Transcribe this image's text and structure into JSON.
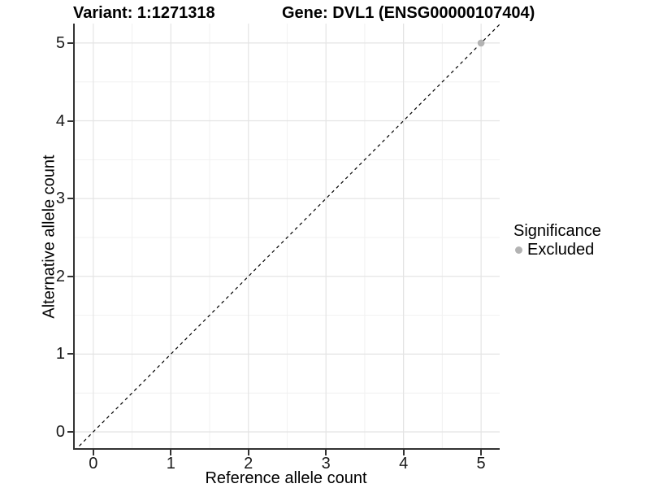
{
  "header": {
    "title_left": "Variant: 1:1271318",
    "title_right": "Gene: DVL1 (ENSG00000107404)"
  },
  "chart_data": {
    "type": "scatter",
    "title_left": "Variant: 1:1271318",
    "title_right": "Gene: DVL1 (ENSG00000107404)",
    "xlabel": "Reference allele count",
    "ylabel": "Alternative allele count",
    "xlim": [
      -0.26,
      5.24
    ],
    "ylim": [
      -0.23,
      5.25
    ],
    "x_ticks": [
      0,
      1,
      2,
      3,
      4,
      5
    ],
    "y_ticks": [
      0,
      1,
      2,
      3,
      4,
      5
    ],
    "grid": {
      "major": true,
      "minor": true,
      "major_color": "#e4e4e4",
      "minor_color": "#f1f1f1",
      "background": "#ffffff"
    },
    "axis_line_color": "#333333",
    "identity_line": {
      "meaning": "y = x reference line",
      "style": "dashed",
      "color": "#000000",
      "from": [
        -0.3,
        -0.3
      ],
      "to": [
        5.3,
        5.3
      ]
    },
    "series": [
      {
        "name": "Excluded",
        "color": "#b3b3b3",
        "marker_radius": 4.3,
        "points": [
          [
            5,
            5
          ]
        ]
      }
    ],
    "legend": {
      "title": "Significance",
      "position": "right",
      "entries": [
        {
          "label": "Excluded",
          "color": "#b3b3b3"
        }
      ]
    }
  }
}
